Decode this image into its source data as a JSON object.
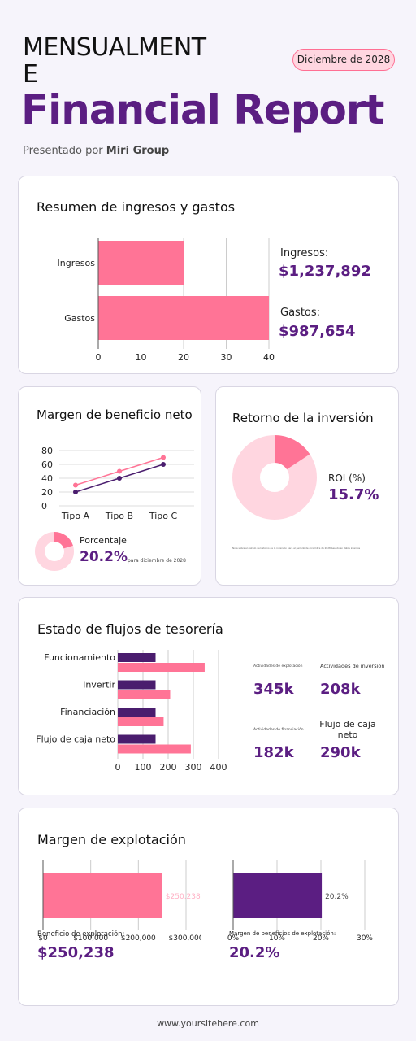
{
  "header": {
    "title_line1": "MENSUALMENTE",
    "title_line2": "Financial Report",
    "date_badge": "Diciembre de 2028",
    "byline_prefix": "Presentado por",
    "byline_company": "Miri Group"
  },
  "income_card": {
    "title": "Resumen de ingresos y gastos",
    "income_label": "Ingresos:",
    "income_value": "$1,237,892",
    "expense_label": "Gastos:",
    "expense_value": "$987,654"
  },
  "margin_card": {
    "title": "Margen de beneficio neto",
    "percent_label": "Porcentaje",
    "percent_value": "20.2%",
    "percent_note": "para diciembre de 2028"
  },
  "roi_card": {
    "title": "Retorno de la inversión",
    "roi_label": "ROI (%)",
    "roi_value": "15.7%",
    "fine_print": "Nota sobre el cálculo del retorno de la inversión para el período de diciembre de 2028 basado en datos internos"
  },
  "cash_card": {
    "title": "Estado de flujos de tesorería",
    "stats": [
      {
        "label": "Actividades de explotación",
        "value": "345k"
      },
      {
        "label": "Actividades de inversión",
        "value": "208k"
      },
      {
        "label": "Actividades de financiación",
        "value": "182k"
      },
      {
        "label": "Flujo de caja neto",
        "value": "290k"
      }
    ]
  },
  "op_card": {
    "title": "Margen de explotación",
    "profit_label": "Beneficio de explotación:",
    "profit_value": "$250,238",
    "margin_label": "Margen de beneficios de explotación:",
    "margin_value": "20.2%"
  },
  "footer": {
    "url": "www.yoursitehere.com"
  },
  "colors": {
    "purple": "#5b1e82",
    "dark_purple": "#4a1d6e",
    "pink": "#ff7496",
    "light_pink": "#ffd6e0"
  },
  "chart_data": [
    {
      "type": "bar",
      "orientation": "horizontal",
      "categories": [
        "Ingresos",
        "Gastos"
      ],
      "values": [
        20,
        40
      ],
      "xlim": [
        0,
        40
      ],
      "xticks": [
        "0",
        "10",
        "20",
        "30",
        "40"
      ]
    },
    {
      "type": "line",
      "categories": [
        "Tipo A",
        "Tipo B",
        "Tipo C"
      ],
      "series": [
        {
          "values": [
            30,
            50,
            70
          ]
        },
        {
          "values": [
            20,
            40,
            60
          ]
        }
      ],
      "ylim": [
        0,
        80
      ],
      "yticks": [
        "0",
        "20",
        "40",
        "60",
        "80"
      ]
    },
    {
      "type": "pie",
      "label": "Porcentaje",
      "values": [
        20.2,
        79.8
      ]
    },
    {
      "type": "pie",
      "label": "ROI (%)",
      "values": [
        15.7,
        84.3
      ]
    },
    {
      "type": "bar",
      "orientation": "horizontal",
      "categories": [
        "Funcionamiento",
        "Invertir",
        "Financiación",
        "Flujo de caja neto"
      ],
      "series": [
        {
          "values": [
            150,
            150,
            150,
            150
          ]
        },
        {
          "values": [
            345,
            208,
            182,
            290
          ]
        }
      ],
      "xlim": [
        0,
        400
      ],
      "xticks": [
        "0",
        "100",
        "200",
        "300",
        "400"
      ]
    },
    {
      "type": "bar",
      "orientation": "horizontal",
      "categories": [
        ""
      ],
      "values": [
        250238
      ],
      "data_label": "$250,238",
      "xlim": [
        0,
        300000
      ],
      "xticks": [
        "$0",
        "$100,000",
        "$200,000",
        "$300,000"
      ]
    },
    {
      "type": "bar",
      "orientation": "horizontal",
      "categories": [
        ""
      ],
      "values": [
        20.2
      ],
      "data_label": "20.2%",
      "xlim": [
        0,
        30
      ],
      "xticks": [
        "0%",
        "10%",
        "20%",
        "30%"
      ]
    }
  ]
}
